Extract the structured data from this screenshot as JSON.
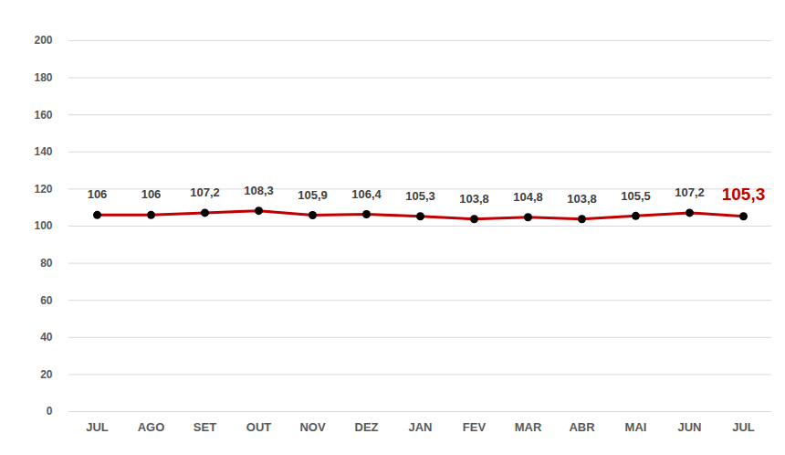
{
  "chart_data": {
    "type": "line",
    "categories": [
      "JUL",
      "AGO",
      "SET",
      "OUT",
      "NOV",
      "DEZ",
      "JAN",
      "FEV",
      "MAR",
      "ABR",
      "MAI",
      "JUN",
      "JUL"
    ],
    "values": [
      106,
      106,
      107.2,
      108.3,
      105.9,
      106.4,
      105.3,
      103.8,
      104.8,
      103.8,
      105.5,
      107.2,
      105.3
    ],
    "value_labels": [
      "106",
      "106",
      "107,2",
      "108,3",
      "105,9",
      "106,4",
      "105,3",
      "103,8",
      "104,8",
      "103,8",
      "105,5",
      "107,2",
      "105,3"
    ],
    "color": "#c00000",
    "marker": "circle",
    "ylim": [
      0,
      200
    ],
    "yticks": [
      0,
      20,
      40,
      60,
      80,
      100,
      120,
      140,
      160,
      180,
      200
    ],
    "grid": true,
    "data_labels": true
  }
}
